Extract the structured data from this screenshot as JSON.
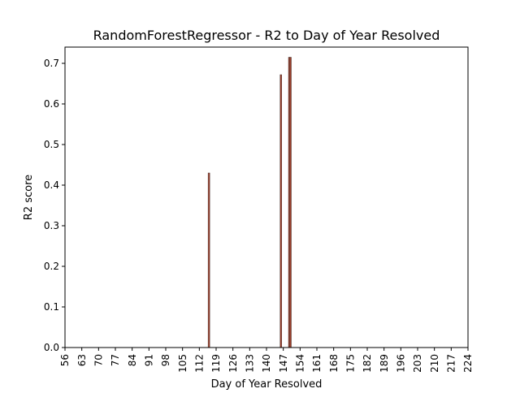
{
  "chart_data": {
    "type": "bar",
    "title": "RandomForestRegressor - R2 to Day of Year Resolved",
    "xlabel": "Day of Year Resolved",
    "ylabel": "R2 score",
    "xlim": [
      56,
      224
    ],
    "ylim": [
      0.0,
      0.74
    ],
    "xticks": [
      56,
      63,
      70,
      77,
      84,
      91,
      98,
      105,
      112,
      119,
      126,
      133,
      140,
      147,
      154,
      161,
      168,
      175,
      182,
      189,
      196,
      203,
      210,
      217,
      224
    ],
    "xtick_labels": [
      "56",
      "63",
      "70",
      "77",
      "84",
      "91",
      "98",
      "105",
      "112",
      "119",
      "126",
      "133",
      "140",
      "147",
      "154",
      "161",
      "168",
      "175",
      "182",
      "189",
      "196",
      "203",
      "210",
      "217",
      "224"
    ],
    "yticks": [
      0.0,
      0.1,
      0.2,
      0.3,
      0.4,
      0.5,
      0.6,
      0.7
    ],
    "ytick_labels": [
      "0.0",
      "0.1",
      "0.2",
      "0.3",
      "0.4",
      "0.5",
      "0.6",
      "0.7"
    ],
    "grid": false,
    "bar_color": "#a0412d",
    "bar_edge_color": "#4a3a36",
    "x": [
      116,
      146,
      149.5,
      150
    ],
    "values": [
      0.43,
      0.672,
      0.715,
      0.715
    ]
  }
}
